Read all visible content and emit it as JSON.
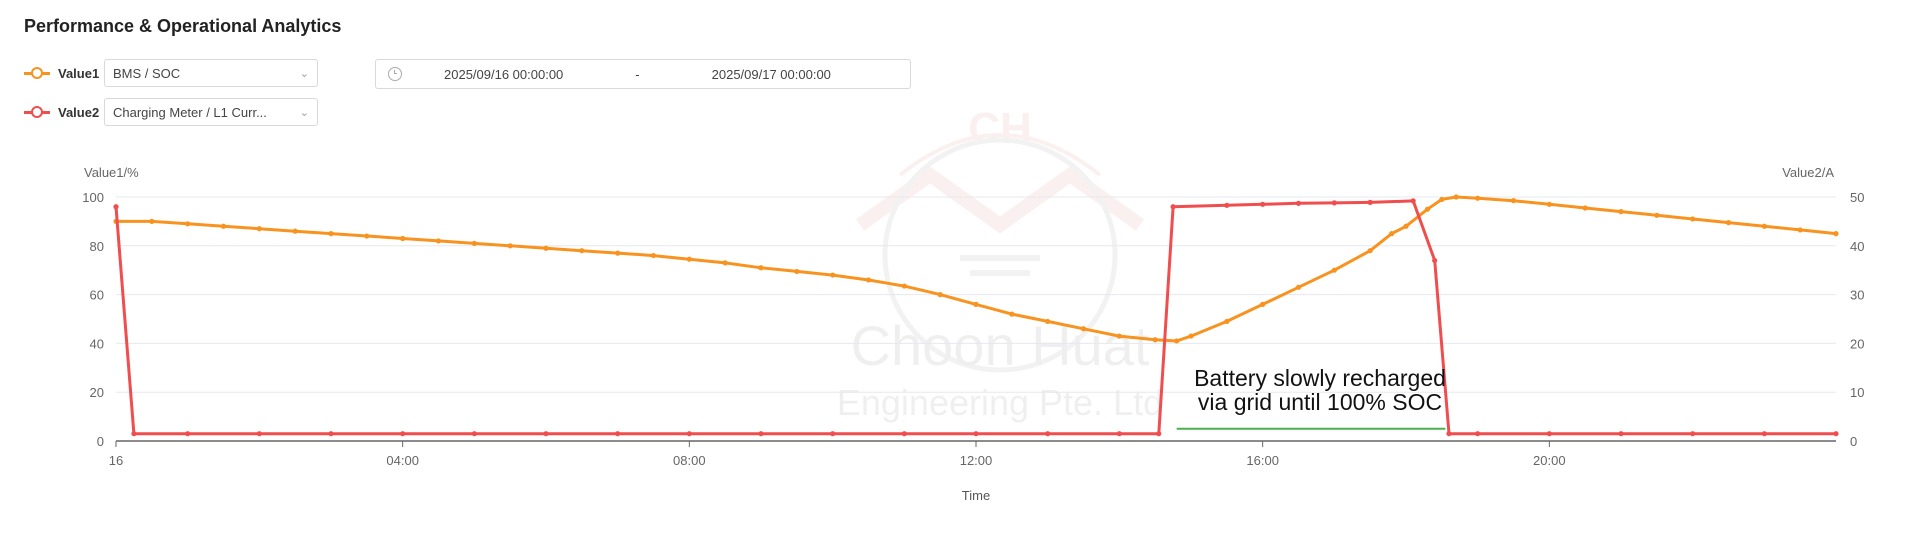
{
  "header": {
    "title": "Performance & Operational Analytics"
  },
  "series_selectors": [
    {
      "label": "Value1",
      "value": "BMS / SOC",
      "color": "#f7931e"
    },
    {
      "label": "Value2",
      "value": "Charging Meter / L1 Curr...",
      "color": "#f04e4e"
    }
  ],
  "date_range": {
    "start": "2025/09/16 00:00:00",
    "separator": "-",
    "end": "2025/09/17 00:00:00"
  },
  "watermark": {
    "logo_text": "CH",
    "company_line1": "Choon Huat",
    "company_line2": "Engineering Pte. Ltd"
  },
  "annotation": {
    "line1": "Battery slowly recharged",
    "line2": "via grid until 100% SOC",
    "color": "#4caf50"
  },
  "chart_data": {
    "type": "line",
    "xlabel": "Time",
    "x_ticks": [
      "16",
      "04:00",
      "08:00",
      "12:00",
      "16:00",
      "20:00"
    ],
    "x_range_hours": [
      0,
      24
    ],
    "left_axis": {
      "label": "Value1/%",
      "range": [
        0,
        100
      ],
      "ticks": [
        0,
        20,
        40,
        60,
        80,
        100
      ]
    },
    "right_axis": {
      "label": "Value2/A",
      "range": [
        0,
        50
      ],
      "ticks": [
        0,
        10,
        20,
        30,
        40,
        50
      ]
    },
    "grid": true,
    "series": [
      {
        "name": "Value1",
        "axis": "left",
        "color": "#f7931e",
        "points": [
          [
            0,
            90
          ],
          [
            0.5,
            90
          ],
          [
            1,
            89
          ],
          [
            1.5,
            88
          ],
          [
            2,
            87
          ],
          [
            2.5,
            86
          ],
          [
            3,
            85
          ],
          [
            3.5,
            84
          ],
          [
            4,
            83
          ],
          [
            4.5,
            82
          ],
          [
            5,
            81
          ],
          [
            5.5,
            80
          ],
          [
            6,
            79
          ],
          [
            6.5,
            78
          ],
          [
            7,
            77
          ],
          [
            7.5,
            76
          ],
          [
            8,
            74.5
          ],
          [
            8.5,
            73
          ],
          [
            9,
            71
          ],
          [
            9.5,
            69.5
          ],
          [
            10,
            68
          ],
          [
            10.5,
            66
          ],
          [
            11,
            63.5
          ],
          [
            11.5,
            60
          ],
          [
            12,
            56
          ],
          [
            12.5,
            52
          ],
          [
            13,
            49
          ],
          [
            13.5,
            46
          ],
          [
            14,
            43
          ],
          [
            14.5,
            41.5
          ],
          [
            14.8,
            41
          ],
          [
            15,
            43
          ],
          [
            15.5,
            49
          ],
          [
            16,
            56
          ],
          [
            16.5,
            63
          ],
          [
            17,
            70
          ],
          [
            17.5,
            78
          ],
          [
            17.8,
            85
          ],
          [
            18,
            88
          ],
          [
            18.3,
            95
          ],
          [
            18.5,
            99
          ],
          [
            18.7,
            100
          ],
          [
            19,
            99.5
          ],
          [
            19.5,
            98.5
          ],
          [
            20,
            97
          ],
          [
            20.5,
            95.5
          ],
          [
            21,
            94
          ],
          [
            21.5,
            92.5
          ],
          [
            22,
            91
          ],
          [
            22.5,
            89.5
          ],
          [
            23,
            88
          ],
          [
            23.5,
            86.5
          ],
          [
            24,
            85
          ]
        ]
      },
      {
        "name": "Value2",
        "axis": "right",
        "color": "#f04e4e",
        "points": [
          [
            0,
            48
          ],
          [
            0.25,
            1.5
          ],
          [
            1,
            1.5
          ],
          [
            2,
            1.5
          ],
          [
            3,
            1.5
          ],
          [
            4,
            1.5
          ],
          [
            5,
            1.5
          ],
          [
            6,
            1.5
          ],
          [
            7,
            1.5
          ],
          [
            8,
            1.5
          ],
          [
            9,
            1.5
          ],
          [
            10,
            1.5
          ],
          [
            11,
            1.5
          ],
          [
            12,
            1.5
          ],
          [
            13,
            1.5
          ],
          [
            14,
            1.5
          ],
          [
            14.55,
            1.5
          ],
          [
            14.75,
            48
          ],
          [
            15.5,
            48.3
          ],
          [
            16,
            48.5
          ],
          [
            16.5,
            48.7
          ],
          [
            17,
            48.8
          ],
          [
            17.5,
            48.9
          ],
          [
            18.1,
            49.2
          ],
          [
            18.4,
            37
          ],
          [
            18.6,
            1.5
          ],
          [
            19,
            1.5
          ],
          [
            20,
            1.5
          ],
          [
            21,
            1.5
          ],
          [
            22,
            1.5
          ],
          [
            23,
            1.5
          ],
          [
            24,
            1.5
          ]
        ]
      }
    ],
    "annotation_line": {
      "x_start_hours": 14.8,
      "x_end_hours": 18.55,
      "y_right": 2.5
    }
  }
}
